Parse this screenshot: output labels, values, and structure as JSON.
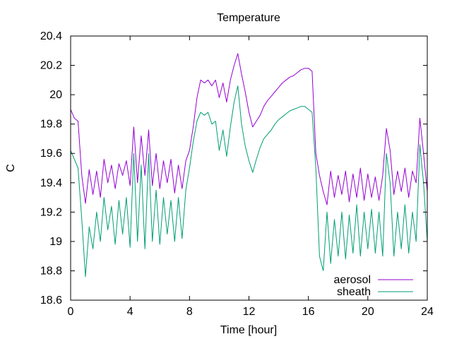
{
  "chart_data": {
    "type": "line",
    "title": "Temperature",
    "xlabel": "Time [hour]",
    "ylabel": "C",
    "xlim": [
      0,
      24
    ],
    "ylim": [
      18.6,
      20.4
    ],
    "grid": false,
    "legend_position": "bottom-right",
    "x_ticks": [
      0,
      4,
      8,
      12,
      16,
      20,
      24
    ],
    "x_tick_labels": [
      "0",
      "4",
      "8",
      "12",
      "16",
      "20",
      "24"
    ],
    "y_ticks": [
      18.6,
      18.8,
      19.0,
      19.2,
      19.4,
      19.6,
      19.8,
      20.0,
      20.2,
      20.4
    ],
    "y_tick_labels": [
      "18.6",
      "18.8",
      "19",
      "19.2",
      "19.4",
      "19.6",
      "19.8",
      "20",
      "20.2",
      "20.4"
    ],
    "series": [
      {
        "name": "aerosol",
        "color": "#9400d3",
        "x": [
          0.0,
          0.25,
          0.5,
          0.75,
          1.0,
          1.25,
          1.5,
          1.75,
          2.0,
          2.25,
          2.5,
          2.75,
          3.0,
          3.25,
          3.5,
          3.75,
          4.0,
          4.25,
          4.5,
          4.75,
          5.0,
          5.25,
          5.5,
          5.75,
          6.0,
          6.25,
          6.5,
          6.75,
          7.0,
          7.25,
          7.5,
          7.75,
          8.0,
          8.25,
          8.5,
          8.75,
          9.0,
          9.25,
          9.5,
          9.75,
          10.0,
          10.25,
          10.5,
          10.75,
          11.0,
          11.25,
          11.5,
          11.75,
          12.0,
          12.25,
          12.5,
          12.75,
          13.0,
          13.25,
          13.5,
          13.75,
          14.0,
          14.25,
          14.5,
          14.75,
          15.0,
          15.25,
          15.5,
          15.75,
          16.0,
          16.25,
          16.5,
          16.75,
          17.0,
          17.25,
          17.5,
          17.75,
          18.0,
          18.25,
          18.5,
          18.75,
          19.0,
          19.25,
          19.5,
          19.75,
          20.0,
          20.25,
          20.5,
          20.75,
          21.0,
          21.25,
          21.5,
          21.75,
          22.0,
          22.25,
          22.5,
          22.75,
          23.0,
          23.25,
          23.5,
          23.75,
          24.0
        ],
        "values": [
          19.9,
          19.84,
          19.82,
          19.45,
          19.26,
          19.49,
          19.32,
          19.48,
          19.3,
          19.56,
          19.4,
          19.52,
          19.36,
          19.53,
          19.45,
          19.55,
          19.38,
          19.78,
          19.4,
          19.72,
          19.45,
          19.76,
          19.38,
          19.6,
          19.36,
          19.55,
          19.4,
          19.56,
          19.33,
          19.52,
          19.36,
          19.55,
          19.62,
          19.78,
          19.98,
          20.1,
          20.08,
          20.1,
          20.06,
          20.1,
          19.98,
          20.08,
          19.95,
          20.1,
          20.2,
          20.28,
          20.14,
          20.02,
          19.88,
          19.78,
          19.82,
          19.86,
          19.92,
          19.96,
          19.99,
          20.02,
          20.05,
          20.08,
          20.1,
          20.12,
          20.13,
          20.15,
          20.17,
          20.18,
          20.18,
          20.16,
          19.6,
          19.45,
          19.34,
          19.25,
          19.48,
          19.3,
          19.45,
          19.32,
          19.48,
          19.27,
          19.46,
          19.3,
          19.5,
          19.28,
          19.46,
          19.3,
          19.44,
          19.28,
          19.45,
          19.77,
          19.62,
          19.32,
          19.48,
          19.34,
          19.5,
          19.3,
          19.48,
          19.4,
          19.84,
          19.6,
          19.34
        ]
      },
      {
        "name": "sheath",
        "color": "#009e73",
        "x": [
          0.0,
          0.25,
          0.5,
          0.75,
          1.0,
          1.25,
          1.5,
          1.75,
          2.0,
          2.25,
          2.5,
          2.75,
          3.0,
          3.25,
          3.5,
          3.75,
          4.0,
          4.25,
          4.5,
          4.75,
          5.0,
          5.25,
          5.5,
          5.75,
          6.0,
          6.25,
          6.5,
          6.75,
          7.0,
          7.25,
          7.5,
          7.75,
          8.0,
          8.25,
          8.5,
          8.75,
          9.0,
          9.25,
          9.5,
          9.75,
          10.0,
          10.25,
          10.5,
          10.75,
          11.0,
          11.25,
          11.5,
          11.75,
          12.0,
          12.25,
          12.5,
          12.75,
          13.0,
          13.25,
          13.5,
          13.75,
          14.0,
          14.25,
          14.5,
          14.75,
          15.0,
          15.25,
          15.5,
          15.75,
          16.0,
          16.25,
          16.5,
          16.75,
          17.0,
          17.25,
          17.5,
          17.75,
          18.0,
          18.25,
          18.5,
          18.75,
          19.0,
          19.25,
          19.5,
          19.75,
          20.0,
          20.25,
          20.5,
          20.75,
          21.0,
          21.25,
          21.5,
          21.75,
          22.0,
          22.25,
          22.5,
          22.75,
          23.0,
          23.25,
          23.5,
          23.75,
          24.0
        ],
        "values": [
          19.62,
          19.56,
          19.5,
          19.15,
          18.76,
          19.1,
          18.95,
          19.2,
          19.0,
          19.3,
          19.08,
          19.24,
          18.98,
          19.28,
          19.05,
          19.3,
          18.96,
          19.6,
          19.0,
          19.52,
          18.95,
          19.6,
          19.0,
          19.35,
          18.98,
          19.3,
          19.05,
          19.28,
          19.0,
          19.3,
          19.02,
          19.35,
          19.5,
          19.68,
          19.82,
          19.88,
          19.86,
          19.88,
          19.8,
          19.82,
          19.62,
          19.76,
          19.58,
          19.78,
          19.95,
          20.06,
          19.8,
          19.65,
          19.55,
          19.47,
          19.56,
          19.64,
          19.7,
          19.73,
          19.76,
          19.8,
          19.83,
          19.85,
          19.87,
          19.89,
          19.9,
          19.91,
          19.92,
          19.92,
          19.9,
          19.88,
          19.5,
          18.9,
          18.8,
          19.2,
          18.85,
          19.15,
          18.9,
          19.2,
          18.88,
          19.18,
          18.92,
          19.25,
          18.9,
          19.2,
          18.95,
          19.22,
          18.92,
          19.2,
          18.9,
          19.6,
          19.4,
          18.9,
          19.2,
          18.95,
          19.25,
          18.92,
          19.2,
          19.0,
          19.66,
          19.4,
          19.0
        ]
      }
    ]
  }
}
